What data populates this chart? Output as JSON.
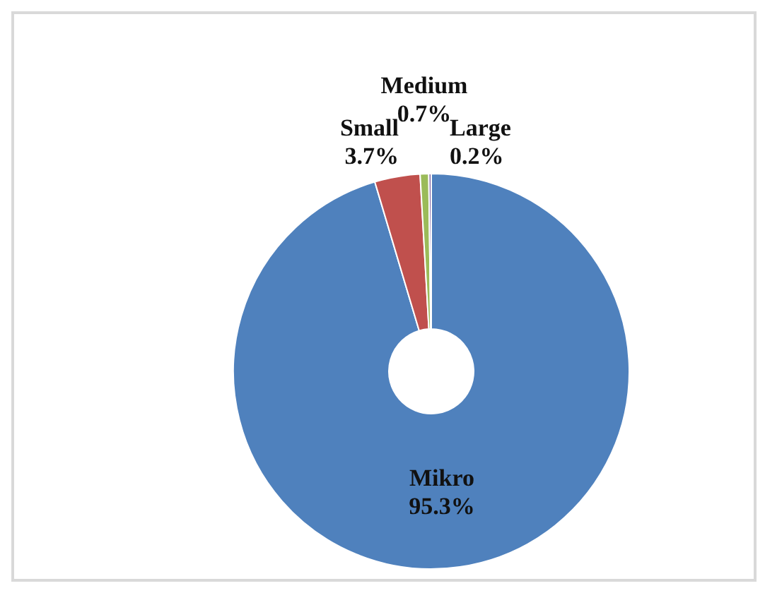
{
  "chart_data": {
    "type": "donut",
    "categories": [
      "Mikro",
      "Small",
      "Medium",
      "Large"
    ],
    "values": [
      95.3,
      3.7,
      0.7,
      0.2
    ],
    "value_labels": [
      "95.3%",
      "3.7%",
      "0.7%",
      "0.2%"
    ],
    "colors": [
      "#4f81bd",
      "#c0504d",
      "#9bbb59",
      "#8064a2"
    ],
    "legend": false
  }
}
